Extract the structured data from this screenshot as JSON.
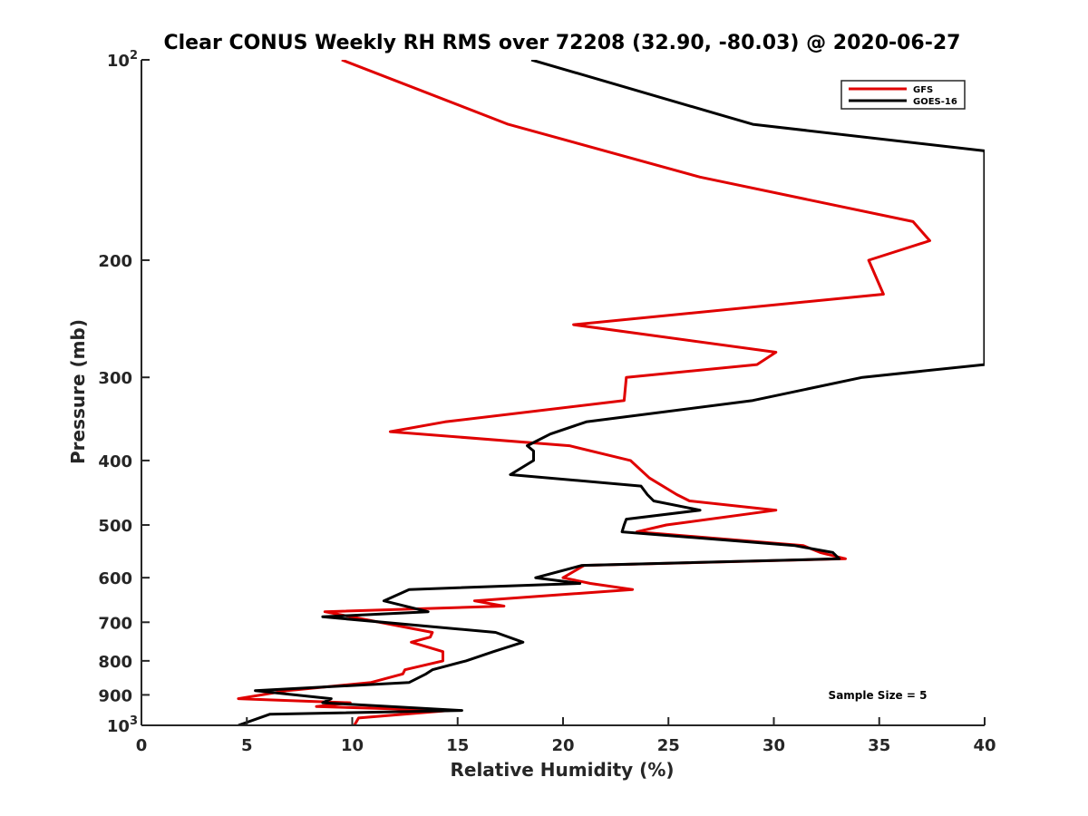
{
  "chart_data": {
    "type": "line",
    "title": "Clear CONUS Weekly RH RMS over 72208 (32.90, -80.03) @ 2020-06-27",
    "xlabel": "Relative Humidity (%)",
    "ylabel": "Pressure (mb)",
    "xlim": [
      0,
      40
    ],
    "ylim": [
      100,
      1000
    ],
    "yscale": "log",
    "y_reversed": true,
    "grid": false,
    "legend_position": "top-right",
    "x_ticks": [
      0,
      5,
      10,
      15,
      20,
      25,
      30,
      35,
      40
    ],
    "x_tick_labels": [
      "0",
      "5",
      "10",
      "15",
      "20",
      "25",
      "30",
      "35",
      "40"
    ],
    "y_ticks": [
      100,
      200,
      300,
      400,
      500,
      600,
      700,
      800,
      900,
      1000
    ],
    "y_tick_labels": [
      "10^2",
      "200",
      "300",
      "400",
      "500",
      "600",
      "700",
      "800",
      "900",
      "10^3"
    ],
    "annotation": "Sample Size = 5",
    "series": [
      {
        "name": "GFS",
        "color": "#e00000",
        "points": [
          [
            9.5,
            100
          ],
          [
            17.4,
            125
          ],
          [
            26.5,
            150
          ],
          [
            36.6,
            175
          ],
          [
            37.4,
            187
          ],
          [
            34.5,
            200
          ],
          [
            35.2,
            225
          ],
          [
            20.5,
            250
          ],
          [
            30.1,
            275
          ],
          [
            29.2,
            287
          ],
          [
            23.0,
            300
          ],
          [
            22.9,
            325
          ],
          [
            14.4,
            350
          ],
          [
            11.8,
            362
          ],
          [
            20.3,
            380
          ],
          [
            23.2,
            400
          ],
          [
            24.1,
            425
          ],
          [
            25.4,
            450
          ],
          [
            26.0,
            460
          ],
          [
            30.1,
            475
          ],
          [
            24.9,
            500
          ],
          [
            23.5,
            512
          ],
          [
            31.4,
            537
          ],
          [
            32.2,
            550
          ],
          [
            33.4,
            562
          ],
          [
            21.0,
            575
          ],
          [
            20.0,
            600
          ],
          [
            21.3,
            612
          ],
          [
            23.3,
            625
          ],
          [
            15.8,
            650
          ],
          [
            17.2,
            662
          ],
          [
            8.7,
            675
          ],
          [
            13.8,
            725
          ],
          [
            13.7,
            737
          ],
          [
            12.8,
            750
          ],
          [
            14.3,
            775
          ],
          [
            14.3,
            800
          ],
          [
            12.5,
            825
          ],
          [
            12.4,
            837
          ],
          [
            10.9,
            862
          ],
          [
            6.9,
            887
          ],
          [
            4.6,
            912
          ],
          [
            9.9,
            925
          ],
          [
            8.3,
            937
          ],
          [
            14.6,
            950
          ],
          [
            10.3,
            975
          ],
          [
            10.1,
            1000
          ]
        ]
      },
      {
        "name": "GOES-16",
        "color": "#000000",
        "points": [
          [
            18.5,
            100
          ],
          [
            29.0,
            125
          ],
          [
            40.0,
            137
          ],
          [
            40.0,
            287
          ],
          [
            34.2,
            300
          ],
          [
            29.0,
            325
          ],
          [
            21.1,
            350
          ],
          [
            19.4,
            365
          ],
          [
            18.3,
            380
          ],
          [
            18.6,
            387
          ],
          [
            18.6,
            400
          ],
          [
            17.5,
            420
          ],
          [
            23.7,
            437
          ],
          [
            24.0,
            450
          ],
          [
            24.3,
            460
          ],
          [
            26.5,
            475
          ],
          [
            23.0,
            490
          ],
          [
            22.9,
            500
          ],
          [
            22.8,
            512
          ],
          [
            31.0,
            537
          ],
          [
            32.8,
            550
          ],
          [
            33.1,
            562
          ],
          [
            20.9,
            575
          ],
          [
            18.7,
            600
          ],
          [
            20.8,
            612
          ],
          [
            12.7,
            625
          ],
          [
            11.5,
            650
          ],
          [
            13.6,
            675
          ],
          [
            8.6,
            687
          ],
          [
            16.8,
            725
          ],
          [
            18.1,
            750
          ],
          [
            16.7,
            775
          ],
          [
            15.4,
            800
          ],
          [
            13.8,
            825
          ],
          [
            13.5,
            837
          ],
          [
            12.7,
            862
          ],
          [
            5.4,
            887
          ],
          [
            9.0,
            912
          ],
          [
            8.6,
            925
          ],
          [
            15.2,
            950
          ],
          [
            6.1,
            962
          ],
          [
            4.6,
            1000
          ]
        ]
      }
    ]
  }
}
